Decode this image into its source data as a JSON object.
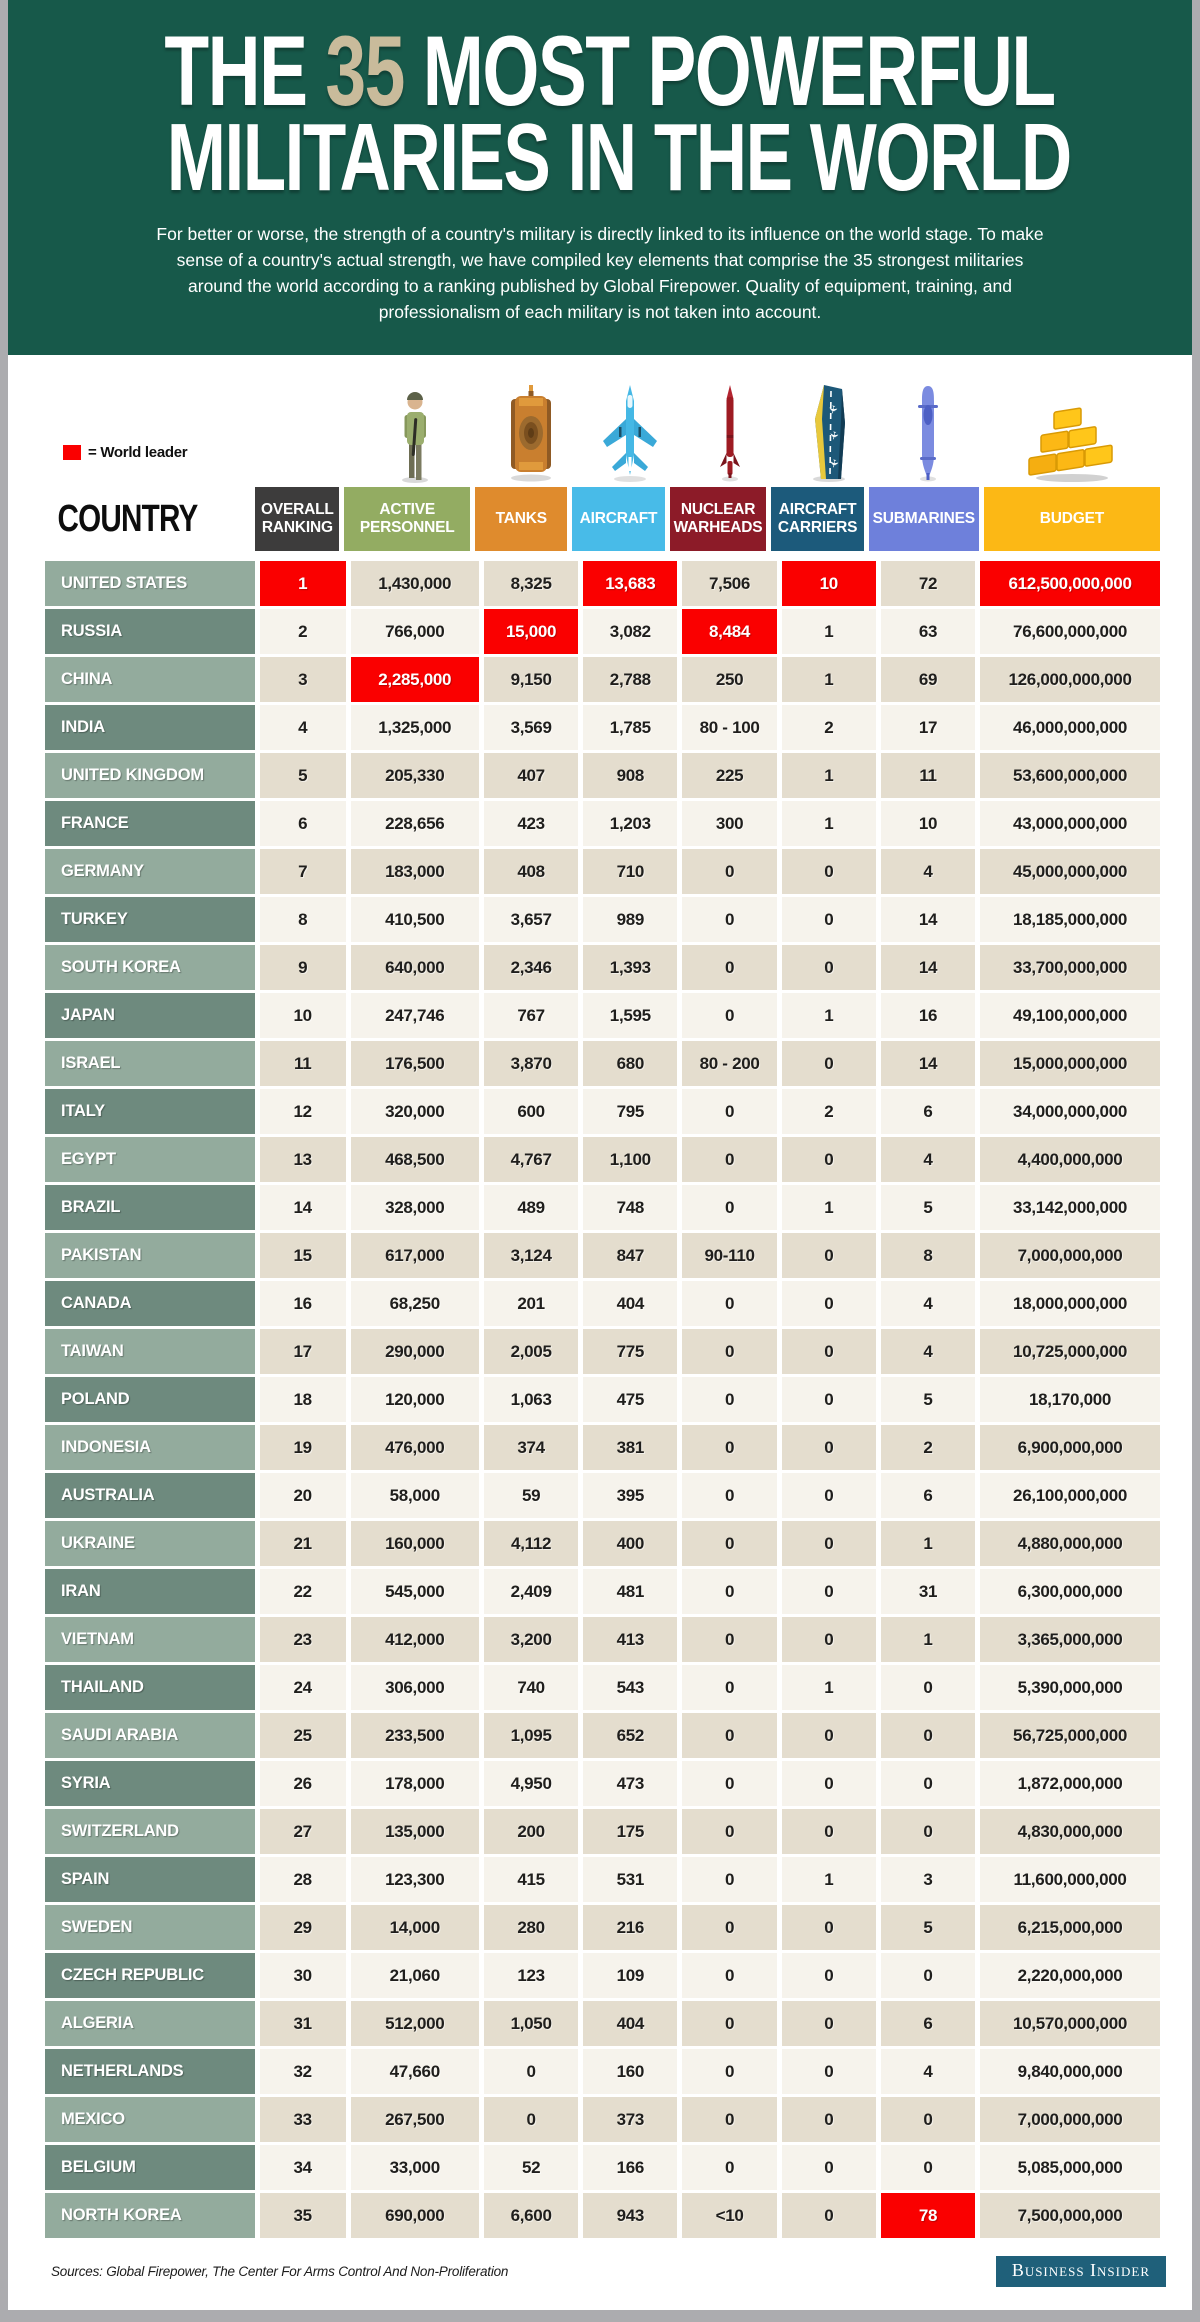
{
  "page": {
    "title_line1_pre": "THE ",
    "title_line1_num": "35",
    "title_line1_post": " MOST POWERFUL",
    "title_line2": "MILITARIES IN THE WORLD",
    "intro": "For better or worse, the strength of a country's military is directly linked to its influence on the world stage. To make sense of a country's actual strength, we have compiled key elements that comprise the 35 strongest militaries around the world according to a ranking published by Global Firepower. Quality of equipment, training, and professionalism of each military is not taken into account.",
    "legend_label": "= World leader",
    "country_header": "COUNTRY",
    "sources": "Sources: Global Firepower,  The Center For Arms Control And Non-Proliferation",
    "brand": "Business Insider"
  },
  "colors": {
    "header_bg": "#17594A",
    "title_accent": "#C9BB9B",
    "world_leader_red": "#FA0000",
    "frame_gray": "#ACACAF",
    "row_cream": "#E4DDCE",
    "row_offwhite": "#F6F3EC",
    "country_light": "#93AB9D",
    "country_dark": "#6E8A7E",
    "brand_bg": "#1F607A",
    "ranking": "#3D3C3C",
    "personnel": "#93AC62",
    "tanks": "#DF8B2D",
    "aircraft": "#48BBE8",
    "nuclear": "#8C1B28",
    "carriers": "#1C5A7B",
    "submarines": "#6E80DB",
    "budget": "#FCB815"
  },
  "chart_data": {
    "type": "table",
    "title": "The 35 Most Powerful Militaries in the World",
    "legend": "Red cell = World leader in that category",
    "columns": [
      {
        "key": "ranking",
        "label": "OVERALL RANKING",
        "icon": null
      },
      {
        "key": "personnel",
        "label": "ACTIVE PERSONNEL",
        "icon": "soldier-icon"
      },
      {
        "key": "tanks",
        "label": "TANKS",
        "icon": "tank-icon"
      },
      {
        "key": "aircraft",
        "label": "AIRCRAFT",
        "icon": "fighter-jet-icon"
      },
      {
        "key": "nuclear",
        "label": "NUCLEAR WARHEADS",
        "icon": "missile-icon"
      },
      {
        "key": "carriers",
        "label": "AIRCRAFT CARRIERS",
        "icon": "aircraft-carrier-icon"
      },
      {
        "key": "submarines",
        "label": "SUBMARINES",
        "icon": "submarine-icon"
      },
      {
        "key": "budget",
        "label": "BUDGET",
        "icon": "gold-bars-icon"
      }
    ],
    "rows": [
      {
        "country": "UNITED STATES",
        "values": [
          "1",
          "1,430,000",
          "8,325",
          "13,683",
          "7,506",
          "10",
          "72",
          "612,500,000,000"
        ],
        "leader_cols": [
          0,
          3,
          5,
          7
        ]
      },
      {
        "country": "RUSSIA",
        "values": [
          "2",
          "766,000",
          "15,000",
          "3,082",
          "8,484",
          "1",
          "63",
          "76,600,000,000"
        ],
        "leader_cols": [
          2,
          4
        ]
      },
      {
        "country": "CHINA",
        "values": [
          "3",
          "2,285,000",
          "9,150",
          "2,788",
          "250",
          "1",
          "69",
          "126,000,000,000"
        ],
        "leader_cols": [
          1
        ]
      },
      {
        "country": "INDIA",
        "values": [
          "4",
          "1,325,000",
          "3,569",
          "1,785",
          "80 - 100",
          "2",
          "17",
          "46,000,000,000"
        ],
        "leader_cols": []
      },
      {
        "country": "UNITED KINGDOM",
        "values": [
          "5",
          "205,330",
          "407",
          "908",
          "225",
          "1",
          "11",
          "53,600,000,000"
        ],
        "leader_cols": []
      },
      {
        "country": "FRANCE",
        "values": [
          "6",
          "228,656",
          "423",
          "1,203",
          "300",
          "1",
          "10",
          "43,000,000,000"
        ],
        "leader_cols": []
      },
      {
        "country": "GERMANY",
        "values": [
          "7",
          "183,000",
          "408",
          "710",
          "0",
          "0",
          "4",
          "45,000,000,000"
        ],
        "leader_cols": []
      },
      {
        "country": "TURKEY",
        "values": [
          "8",
          "410,500",
          "3,657",
          "989",
          "0",
          "0",
          "14",
          "18,185,000,000"
        ],
        "leader_cols": []
      },
      {
        "country": "SOUTH KOREA",
        "values": [
          "9",
          "640,000",
          "2,346",
          "1,393",
          "0",
          "0",
          "14",
          "33,700,000,000"
        ],
        "leader_cols": []
      },
      {
        "country": "JAPAN",
        "values": [
          "10",
          "247,746",
          "767",
          "1,595",
          "0",
          "1",
          "16",
          "49,100,000,000"
        ],
        "leader_cols": []
      },
      {
        "country": "ISRAEL",
        "values": [
          "11",
          "176,500",
          "3,870",
          "680",
          "80 - 200",
          "0",
          "14",
          "15,000,000,000"
        ],
        "leader_cols": []
      },
      {
        "country": "ITALY",
        "values": [
          "12",
          "320,000",
          "600",
          "795",
          "0",
          "2",
          "6",
          "34,000,000,000"
        ],
        "leader_cols": []
      },
      {
        "country": "EGYPT",
        "values": [
          "13",
          "468,500",
          "4,767",
          "1,100",
          "0",
          "0",
          "4",
          "4,400,000,000"
        ],
        "leader_cols": []
      },
      {
        "country": "BRAZIL",
        "values": [
          "14",
          "328,000",
          "489",
          "748",
          "0",
          "1",
          "5",
          "33,142,000,000"
        ],
        "leader_cols": []
      },
      {
        "country": "PAKISTAN",
        "values": [
          "15",
          "617,000",
          "3,124",
          "847",
          "90-110",
          "0",
          "8",
          "7,000,000,000"
        ],
        "leader_cols": []
      },
      {
        "country": "CANADA",
        "values": [
          "16",
          "68,250",
          "201",
          "404",
          "0",
          "0",
          "4",
          "18,000,000,000"
        ],
        "leader_cols": []
      },
      {
        "country": "TAIWAN",
        "values": [
          "17",
          "290,000",
          "2,005",
          "775",
          "0",
          "0",
          "4",
          "10,725,000,000"
        ],
        "leader_cols": []
      },
      {
        "country": "POLAND",
        "values": [
          "18",
          "120,000",
          "1,063",
          "475",
          "0",
          "0",
          "5",
          "18,170,000"
        ],
        "leader_cols": []
      },
      {
        "country": "INDONESIA",
        "values": [
          "19",
          "476,000",
          "374",
          "381",
          "0",
          "0",
          "2",
          "6,900,000,000"
        ],
        "leader_cols": []
      },
      {
        "country": "AUSTRALIA",
        "values": [
          "20",
          "58,000",
          "59",
          "395",
          "0",
          "0",
          "6",
          "26,100,000,000"
        ],
        "leader_cols": []
      },
      {
        "country": "UKRAINE",
        "values": [
          "21",
          "160,000",
          "4,112",
          "400",
          "0",
          "0",
          "1",
          "4,880,000,000"
        ],
        "leader_cols": []
      },
      {
        "country": "IRAN",
        "values": [
          "22",
          "545,000",
          "2,409",
          "481",
          "0",
          "0",
          "31",
          "6,300,000,000"
        ],
        "leader_cols": []
      },
      {
        "country": "VIETNAM",
        "values": [
          "23",
          "412,000",
          "3,200",
          "413",
          "0",
          "0",
          "1",
          "3,365,000,000"
        ],
        "leader_cols": []
      },
      {
        "country": "THAILAND",
        "values": [
          "24",
          "306,000",
          "740",
          "543",
          "0",
          "1",
          "0",
          "5,390,000,000"
        ],
        "leader_cols": []
      },
      {
        "country": "SAUDI ARABIA",
        "values": [
          "25",
          "233,500",
          "1,095",
          "652",
          "0",
          "0",
          "0",
          "56,725,000,000"
        ],
        "leader_cols": []
      },
      {
        "country": "SYRIA",
        "values": [
          "26",
          "178,000",
          "4,950",
          "473",
          "0",
          "0",
          "0",
          "1,872,000,000"
        ],
        "leader_cols": []
      },
      {
        "country": "SWITZERLAND",
        "values": [
          "27",
          "135,000",
          "200",
          "175",
          "0",
          "0",
          "0",
          "4,830,000,000"
        ],
        "leader_cols": []
      },
      {
        "country": "SPAIN",
        "values": [
          "28",
          "123,300",
          "415",
          "531",
          "0",
          "1",
          "3",
          "11,600,000,000"
        ],
        "leader_cols": []
      },
      {
        "country": "SWEDEN",
        "values": [
          "29",
          "14,000",
          "280",
          "216",
          "0",
          "0",
          "5",
          "6,215,000,000"
        ],
        "leader_cols": []
      },
      {
        "country": "CZECH REPUBLIC",
        "values": [
          "30",
          "21,060",
          "123",
          "109",
          "0",
          "0",
          "0",
          "2,220,000,000"
        ],
        "leader_cols": []
      },
      {
        "country": "ALGERIA",
        "values": [
          "31",
          "512,000",
          "1,050",
          "404",
          "0",
          "0",
          "6",
          "10,570,000,000"
        ],
        "leader_cols": []
      },
      {
        "country": "NETHERLANDS",
        "values": [
          "32",
          "47,660",
          "0",
          "160",
          "0",
          "0",
          "4",
          "9,840,000,000"
        ],
        "leader_cols": []
      },
      {
        "country": "MEXICO",
        "values": [
          "33",
          "267,500",
          "0",
          "373",
          "0",
          "0",
          "0",
          "7,000,000,000"
        ],
        "leader_cols": []
      },
      {
        "country": "BELGIUM",
        "values": [
          "34",
          "33,000",
          "52",
          "166",
          "0",
          "0",
          "0",
          "5,085,000,000"
        ],
        "leader_cols": []
      },
      {
        "country": "NORTH KOREA",
        "values": [
          "35",
          "690,000",
          "6,600",
          "943",
          "<10",
          "0",
          "78",
          "7,500,000,000"
        ],
        "leader_cols": [
          6
        ]
      }
    ]
  }
}
